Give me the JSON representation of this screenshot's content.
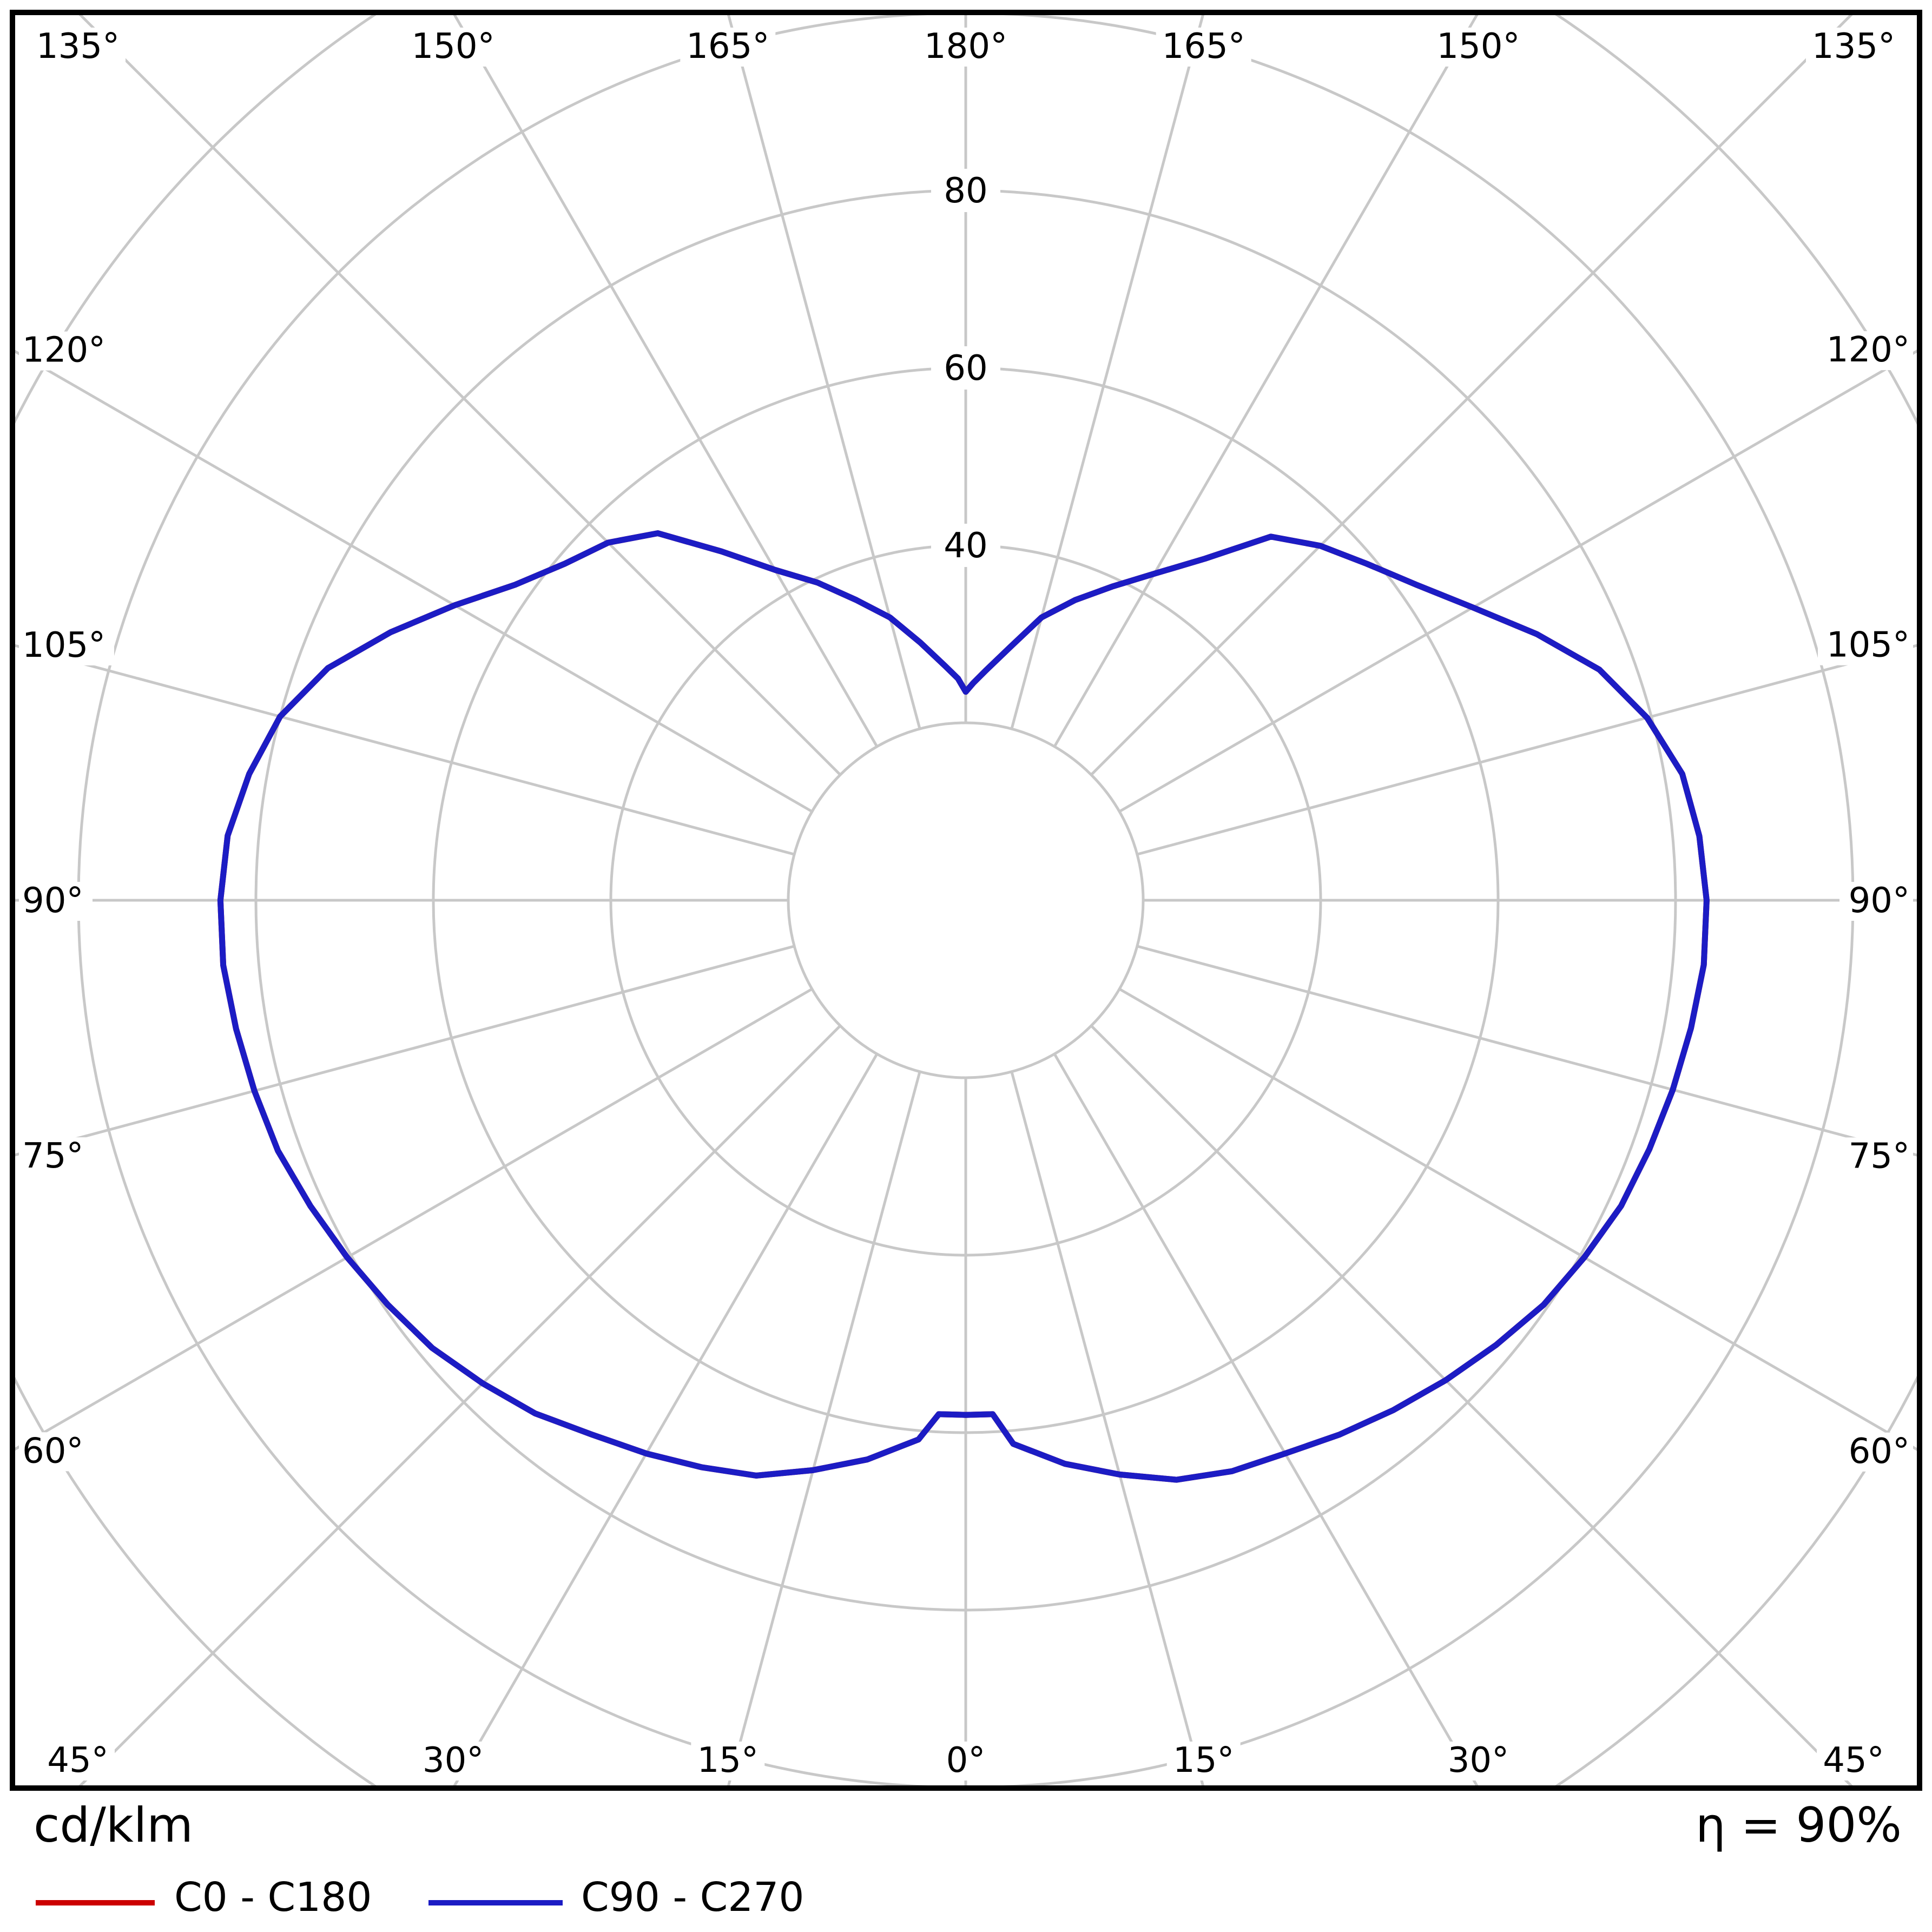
{
  "page": {
    "background": "#ffffff"
  },
  "footer": {
    "unit_label": "cd/klm",
    "efficiency_label": "η = 90%",
    "legend": [
      {
        "label": "C0 - C180",
        "color": "#cc0000"
      },
      {
        "label": "C90 - C270",
        "color": "#1c1cc4"
      }
    ]
  },
  "chart_data": {
    "type": "line",
    "subtype": "polar-photometric",
    "description": "Luminous intensity distribution curve, polar diagram, gamma angle measured from nadir (0° at bottom, 180° at top)",
    "units": "cd/klm",
    "efficiency": "90%",
    "grid_color": "#c8c8c8",
    "frame_color": "#000000",
    "angle_gridline_step_deg": 15,
    "angle_range_deg": [
      0,
      180
    ],
    "angle_labels_top": [
      "135°",
      "150°",
      "165°",
      "180°",
      "165°",
      "150°",
      "135°"
    ],
    "angle_labels_left": [
      "120°",
      "105°",
      "90°",
      "75°",
      "60°"
    ],
    "angle_labels_right": [
      "120°",
      "105°",
      "90°",
      "75°",
      "60°"
    ],
    "angle_labels_bottom": [
      "45°",
      "30°",
      "15°",
      "0°",
      "15°",
      "30°",
      "45°"
    ],
    "radial_gridlines": [
      20,
      40,
      60,
      80,
      100,
      120
    ],
    "radial_tick_labels": [
      40,
      60,
      80
    ],
    "legend_position": "bottom-left",
    "series": [
      {
        "name": "C0 - C180",
        "color": "#cc0000",
        "gamma_deg": [
          0,
          3,
          5,
          10,
          15,
          20,
          25,
          30,
          35,
          40,
          45,
          50,
          55,
          60,
          65,
          70,
          75,
          80,
          85,
          90,
          95,
          100,
          105,
          110,
          115,
          120,
          125,
          130,
          135,
          140,
          145,
          150,
          155,
          160,
          165,
          170,
          175,
          178,
          180
        ],
        "values_right": [
          58,
          58,
          61.5,
          64.5,
          67,
          69.5,
          71,
          72,
          73.5,
          75,
          76.5,
          78,
          79.5,
          80.5,
          81.5,
          82,
          82.5,
          83,
          83.5,
          83.5,
          83,
          82,
          79.5,
          76,
          71,
          66,
          62,
          59,
          56.5,
          53.5,
          47,
          42.5,
          39,
          36,
          33,
          29,
          26,
          24.5,
          23.5
        ],
        "values_left": [
          58,
          58,
          61,
          64,
          66.5,
          69,
          70.5,
          72,
          73.5,
          75.5,
          77,
          78.5,
          79.5,
          80.5,
          81.5,
          82.5,
          83,
          83.5,
          84,
          84,
          83.5,
          82,
          80,
          76.5,
          71.5,
          66.5,
          62,
          59,
          57,
          54,
          48,
          43,
          39.5,
          36,
          33,
          29.5,
          26.5,
          25,
          23.5
        ]
      },
      {
        "name": "C90 - C270",
        "color": "#1c1cc4",
        "gamma_deg": [
          0,
          3,
          5,
          10,
          15,
          20,
          25,
          30,
          35,
          40,
          45,
          50,
          55,
          60,
          65,
          70,
          75,
          80,
          85,
          90,
          95,
          100,
          105,
          110,
          115,
          120,
          125,
          130,
          135,
          140,
          145,
          150,
          155,
          160,
          165,
          170,
          175,
          178,
          180
        ],
        "values_right": [
          58,
          58,
          61.5,
          64.5,
          67,
          69.5,
          71,
          72,
          73.5,
          75,
          76.5,
          78,
          79.5,
          80.5,
          81.5,
          82,
          82.5,
          83,
          83.5,
          83.5,
          83,
          82,
          79.5,
          76,
          71,
          66,
          62,
          59,
          56.5,
          53.5,
          47,
          42.5,
          39,
          36,
          33,
          29,
          26,
          24.5,
          23.5
        ],
        "values_left": [
          58,
          58,
          61,
          64,
          66.5,
          69,
          70.5,
          72,
          73.5,
          75.5,
          77,
          78.5,
          79.5,
          80.5,
          81.5,
          82.5,
          83,
          83.5,
          84,
          84,
          83.5,
          82,
          80,
          76.5,
          71.5,
          66.5,
          62,
          59,
          57,
          54,
          48,
          43,
          39.5,
          36,
          33,
          29.5,
          26.5,
          25,
          23.5
        ]
      }
    ]
  }
}
